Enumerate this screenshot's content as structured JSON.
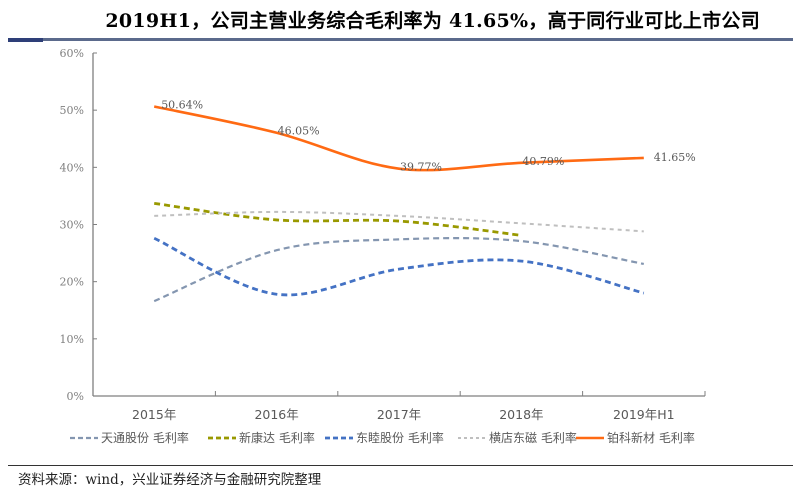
{
  "header": {
    "title": "2019H1，公司主营业务综合毛利率为 41.65%，高于同行业可比上市公司"
  },
  "footer": {
    "source": "资料来源：wind，兴业证券经济与金融研究院整理"
  },
  "chart_data": {
    "type": "line",
    "title": "2019H1，公司主营业务综合毛利率为 41.65%，高于同行业可比上市公司",
    "xlabel": "",
    "ylabel": "",
    "categories": [
      "2015年",
      "2016年",
      "2017年",
      "2018年",
      "2019年H1"
    ],
    "ylim": [
      0,
      60
    ],
    "yticks": [
      0,
      10,
      20,
      30,
      40,
      50,
      60
    ],
    "ytick_labels": [
      "0%",
      "10%",
      "20%",
      "30%",
      "40%",
      "50%",
      "60%"
    ],
    "grid": false,
    "smooth": true,
    "legend_position": "bottom",
    "series": [
      {
        "name": "天通股份 毛利率",
        "color": "#8496b0",
        "dash": "dash",
        "values": [
          16.6,
          25.5,
          27.4,
          27.1,
          23.1
        ]
      },
      {
        "name": "新康达 毛利率",
        "color": "#999900",
        "dash": "dash-thick",
        "values": [
          33.7,
          30.8,
          30.6,
          28.1,
          null
        ]
      },
      {
        "name": "东睦股份 毛利率",
        "color": "#4472c4",
        "dash": "dash-thick",
        "values": [
          27.6,
          17.8,
          22.2,
          23.6,
          18.0
        ]
      },
      {
        "name": "横店东磁 毛利率",
        "color": "#bfbfbf",
        "dash": "dash-fine",
        "values": [
          31.5,
          32.2,
          31.5,
          30.2,
          28.8
        ]
      },
      {
        "name": "铂科新材 毛利率",
        "color": "#ff6a13",
        "dash": "solid",
        "values": [
          50.64,
          46.05,
          39.77,
          40.79,
          41.65
        ],
        "data_labels": [
          "50.64%",
          "46.05%",
          "39.77%",
          "40.79%",
          "41.65%"
        ]
      }
    ]
  }
}
